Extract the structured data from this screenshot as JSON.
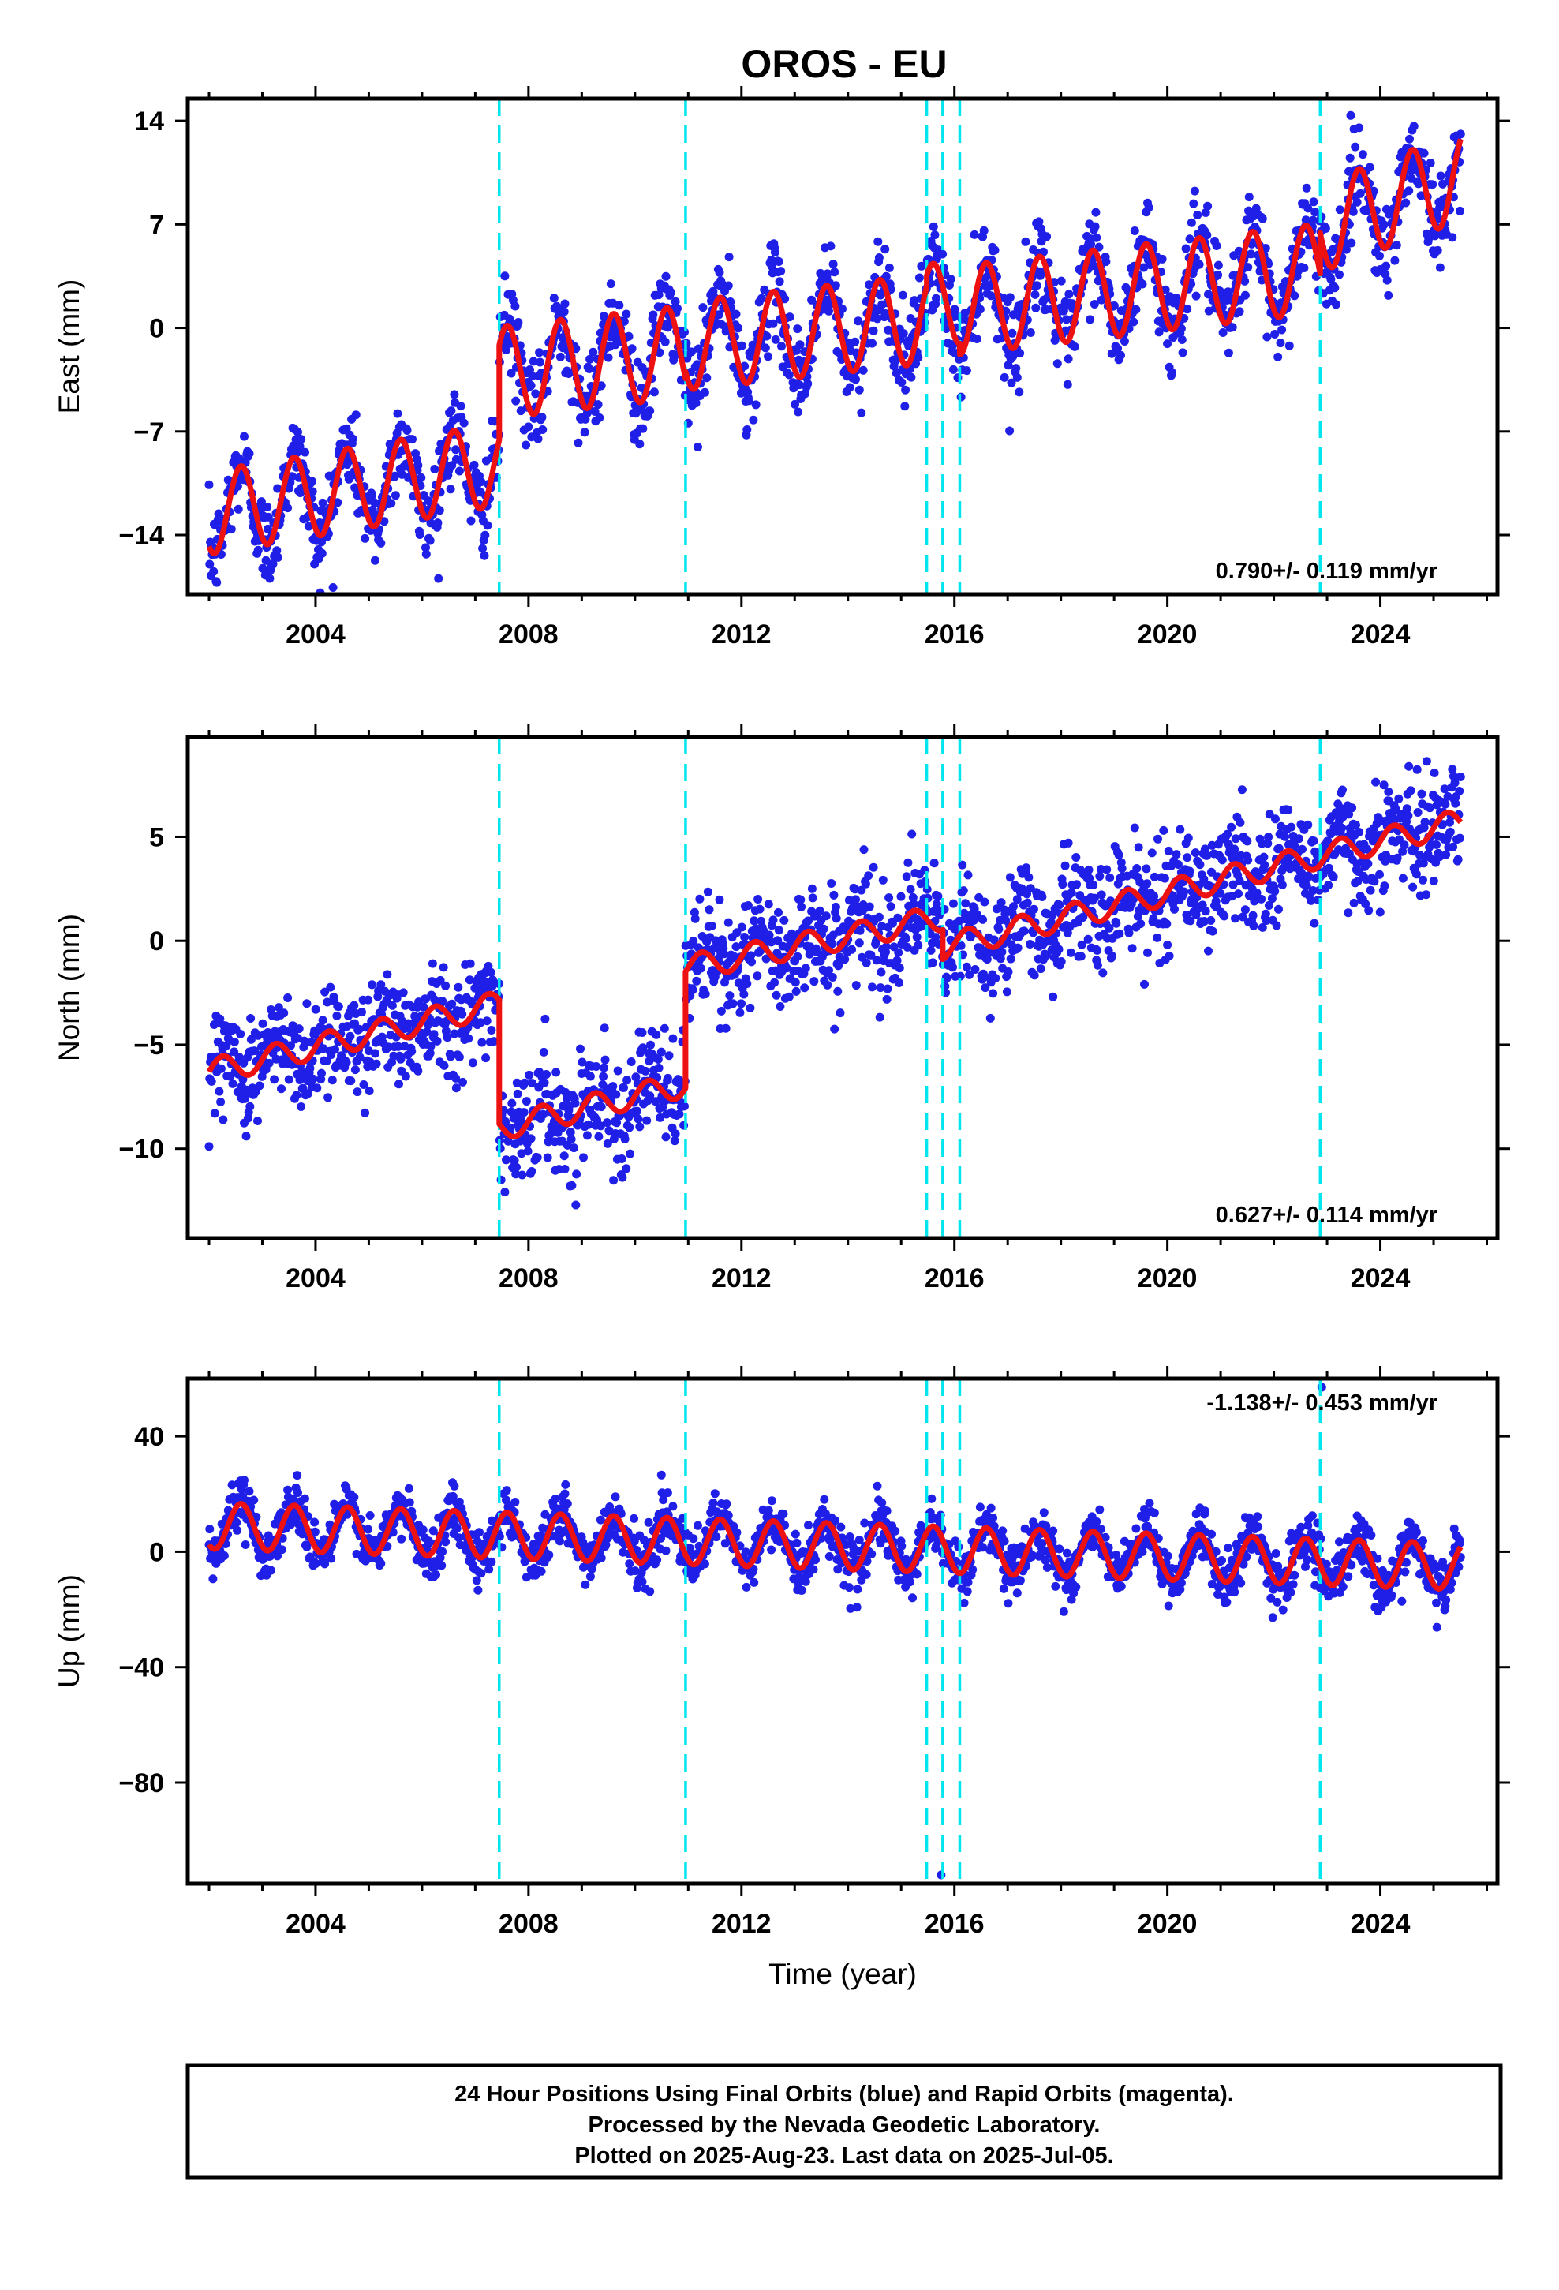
{
  "title": "OROS - EU",
  "chart_data": [
    {
      "type": "scatter",
      "component": "east",
      "ylabel": "East (mm)",
      "xlim": [
        2001.6,
        2026.2
      ],
      "ylim": [
        -18,
        15.5
      ],
      "yticks": [
        14,
        7,
        0,
        -7,
        -14
      ],
      "ytick_labels": [
        "14",
        "7",
        "0",
        "−7",
        "−14"
      ],
      "xticks": [
        2004,
        2008,
        2012,
        2016,
        2020,
        2024
      ],
      "xtick_labels": [
        "2004",
        "2008",
        "2012",
        "2016",
        "2020",
        "2024"
      ],
      "rate": "0.790+/- 0.119 mm/yr",
      "rate_position": "bottom-right",
      "offsets": [
        2007.45,
        2010.95,
        2015.48,
        2015.78,
        2016.1,
        2022.87
      ],
      "model_segments": [
        {
          "start": 2002.0,
          "end": 2007.45,
          "y0": -12.5,
          "slope": 0.6,
          "amplitude": 2.8,
          "phase": 0.35
        },
        {
          "start": 2007.45,
          "end": 2010.95,
          "y0": -3.0,
          "slope": 0.4,
          "amplitude": 3.1,
          "phase": 0.35
        },
        {
          "start": 2010.95,
          "end": 2015.48,
          "y0": -1.2,
          "slope": 0.4,
          "amplitude": 3.0,
          "phase": 0.35
        },
        {
          "start": 2015.48,
          "end": 2016.1,
          "y0": 1.5,
          "slope": 0.4,
          "amplitude": 2.8,
          "phase": 0.35
        },
        {
          "start": 2016.1,
          "end": 2022.87,
          "y0": 1.2,
          "slope": 0.42,
          "amplitude": 3.0,
          "phase": 0.35
        },
        {
          "start": 2022.87,
          "end": 2025.51,
          "y0": 6.8,
          "slope": 1.3,
          "amplitude": 3.0,
          "phase": 0.35
        }
      ],
      "scatter_sigma": 1.5
    },
    {
      "type": "scatter",
      "component": "north",
      "ylabel": "North (mm)",
      "xlim": [
        2001.6,
        2026.2
      ],
      "ylim": [
        -14.3,
        9.8
      ],
      "yticks": [
        5,
        0,
        -5,
        -10
      ],
      "ytick_labels": [
        "5",
        "0",
        "−5",
        "−10"
      ],
      "xticks": [
        2004,
        2008,
        2012,
        2016,
        2020,
        2024
      ],
      "xtick_labels": [
        "2004",
        "2008",
        "2012",
        "2016",
        "2020",
        "2024"
      ],
      "rate": "0.627+/- 0.114 mm/yr",
      "rate_position": "bottom-right",
      "offsets": [
        2007.45,
        2010.95,
        2015.48,
        2015.78,
        2016.1,
        2022.87
      ],
      "model_segments": [
        {
          "start": 2002.0,
          "end": 2007.45,
          "y0": -6.3,
          "slope": 0.6,
          "amplitude": 0.6,
          "phase": 0.0
        },
        {
          "start": 2007.45,
          "end": 2010.95,
          "y0": -9.0,
          "slope": 0.6,
          "amplitude": 0.6,
          "phase": 0.0
        },
        {
          "start": 2010.95,
          "end": 2015.78,
          "y0": -1.3,
          "slope": 0.5,
          "amplitude": 0.6,
          "phase": 0.0
        },
        {
          "start": 2015.78,
          "end": 2025.51,
          "y0": -0.3,
          "slope": 0.62,
          "amplitude": 0.6,
          "phase": 0.0
        }
      ],
      "scatter_sigma": 1.3
    },
    {
      "type": "scatter",
      "component": "up",
      "ylabel": "Up (mm)",
      "xlabel": "Time (year)",
      "xlim": [
        2001.6,
        2026.2
      ],
      "ylim": [
        -115,
        60
      ],
      "yticks": [
        40,
        0,
        -40,
        -80
      ],
      "ytick_labels": [
        "40",
        "0",
        "−40",
        "−80"
      ],
      "xticks": [
        2004,
        2008,
        2012,
        2016,
        2020,
        2024
      ],
      "xtick_labels": [
        "2004",
        "2008",
        "2012",
        "2016",
        "2020",
        "2024"
      ],
      "rate": "-1.138+/- 0.453 mm/yr",
      "rate_position": "top-right",
      "offsets": [
        2007.45,
        2010.95,
        2015.48,
        2015.78,
        2016.1,
        2022.87
      ],
      "model_segments": [
        {
          "start": 2002.0,
          "end": 2025.51,
          "y0": 9.0,
          "slope": -0.6,
          "amplitude": 8.0,
          "phase": 0.35
        }
      ],
      "scatter_sigma": 4.5,
      "outliers": [
        {
          "x": 2015.75,
          "y": -112
        },
        {
          "x": 2022.9,
          "y": 57
        }
      ]
    }
  ],
  "legend": {
    "fit_line": "red",
    "observations": "blue",
    "offset_markers": "cyan dashed"
  },
  "colors": {
    "points": "#1f1fe8",
    "fit": "#ee1111",
    "offsets": "#00e5ee",
    "frame": "#000000"
  },
  "caption": {
    "line1": "24 Hour Positions Using Final Orbits (blue) and Rapid Orbits (magenta).",
    "line2": "Processed by the Nevada Geodetic Laboratory.",
    "line3": "Plotted on 2025-Aug-23. Last data on 2025-Jul-05."
  }
}
